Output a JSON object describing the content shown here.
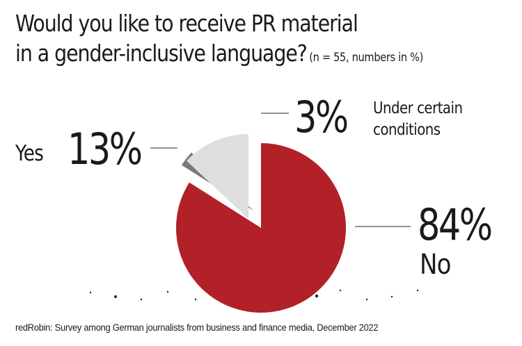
{
  "title": {
    "line1": "Would you like to receive PR material",
    "line2": "in a gender-inclusive language?",
    "subtitle": "(n = 55, numbers in %)"
  },
  "chart_data": {
    "type": "pie",
    "title": "Would you like to receive PR material in a gender-inclusive language?",
    "subtitle": "(n = 55, numbers in %)",
    "slices": [
      {
        "label": "No",
        "value": 84,
        "display": "84%",
        "color": "#b22028"
      },
      {
        "label": "Under certain conditions",
        "value": 3,
        "display": "3%",
        "color": "#7a7a7a"
      },
      {
        "label": "Yes",
        "value": 13,
        "display": "13%",
        "color": "#dedede"
      }
    ]
  },
  "labels": {
    "yes_word": "Yes",
    "yes_pct": "13%",
    "cond_pct": "3%",
    "cond_line1": "Under certain",
    "cond_line2": "conditions",
    "no_pct": "84%",
    "no_word": "No"
  },
  "footer": "redRobin: Survey among German journalists from business and finance media, December 2022"
}
